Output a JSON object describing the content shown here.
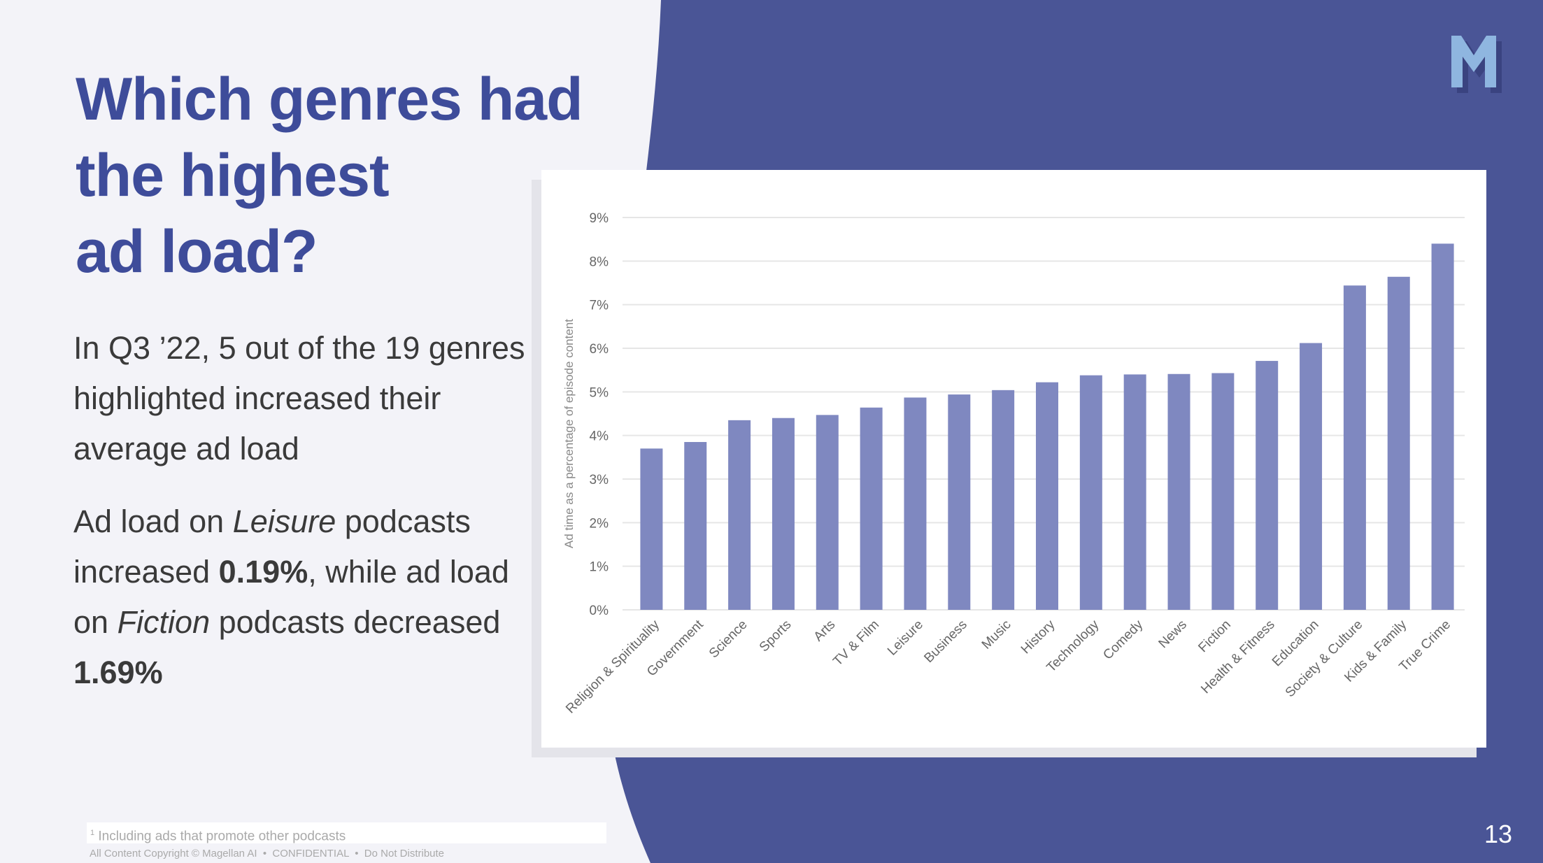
{
  "title": [
    "Which genres had",
    "the highest",
    "ad load?"
  ],
  "paragraph1": "In Q3 ’22, 5 out of the 19 genres highlighted increased their average ad load",
  "paragraph2": {
    "p1": "Ad load on ",
    "leisure": "Leisure",
    "p2": " podcasts increased ",
    "v1": "0.19%",
    "p3": ", while ad load on ",
    "fiction": "Fiction",
    "p4": " podcasts decreased ",
    "v2": "1.69%"
  },
  "footnote": {
    "marker": "1",
    "text": "Including ads that promote other podcasts"
  },
  "copyright": "All Content Copyright © Magellan AI  •  CONFIDENTIAL  •  Do Not Distribute",
  "page_number": "13",
  "logo": "M",
  "colors": {
    "navy": "#4a5596",
    "title": "#3e4c9a",
    "bar": "#7f88c0"
  },
  "chart_data": {
    "type": "bar",
    "title": "",
    "xlabel": "",
    "ylabel": "Ad time as a percentage of episode content",
    "ylim": [
      0,
      9
    ],
    "yticks": [
      "0%",
      "1%",
      "2%",
      "3%",
      "4%",
      "5%",
      "6%",
      "7%",
      "8%",
      "9%"
    ],
    "grid": true,
    "categories": [
      "Religion & Spirituality",
      "Government",
      "Science",
      "Sports",
      "Arts",
      "TV & Film",
      "Leisure",
      "Business",
      "Music",
      "History",
      "Technology",
      "Comedy",
      "News",
      "Fiction",
      "Health & Fitness",
      "Education",
      "Society & Culture",
      "Kids & Family",
      "True Crime"
    ],
    "values": [
      3.7,
      3.85,
      4.35,
      4.4,
      4.47,
      4.64,
      4.87,
      4.94,
      5.04,
      5.22,
      5.38,
      5.4,
      5.41,
      5.43,
      5.71,
      6.12,
      7.44,
      7.64,
      8.4
    ]
  }
}
